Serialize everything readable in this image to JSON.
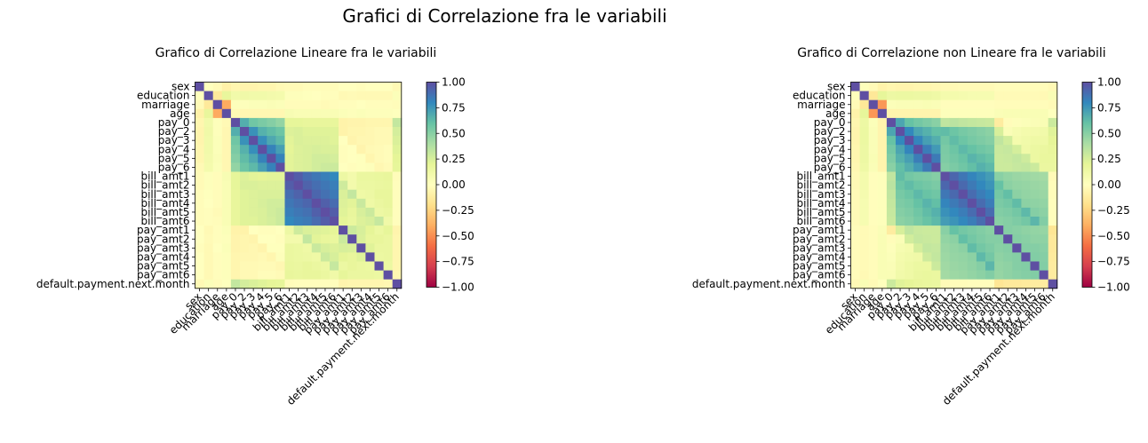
{
  "suptitle": "Grafici di Correlazione fra le variabili",
  "chart_data": [
    {
      "type": "heatmap",
      "title": "Grafico di Correlazione Lineare fra le variabili",
      "colormap": "Spectral",
      "vmin": -1,
      "vmax": 1,
      "labels": [
        "sex",
        "education",
        "marriage",
        "age",
        "pay_0",
        "pay_2",
        "pay_3",
        "pay_4",
        "pay_5",
        "pay_6",
        "bill_amt1",
        "bill_amt2",
        "bill_amt3",
        "bill_amt4",
        "bill_amt5",
        "bill_amt6",
        "pay_amt1",
        "pay_amt2",
        "pay_amt3",
        "pay_amt4",
        "pay_amt5",
        "pay_amt6",
        "default.payment.next.month"
      ],
      "colorbar_ticks": [
        "1.00",
        "0.75",
        "0.50",
        "0.25",
        "0.00",
        "−0.25",
        "−0.50",
        "−0.75",
        "−1.00"
      ],
      "matrix": [
        [
          1.0,
          0.01,
          -0.03,
          -0.09,
          -0.06,
          -0.07,
          -0.07,
          -0.06,
          -0.06,
          -0.04,
          -0.03,
          -0.03,
          -0.02,
          -0.02,
          -0.02,
          -0.02,
          0.0,
          0.0,
          -0.01,
          0.0,
          0.0,
          0.0,
          -0.04
        ],
        [
          0.01,
          1.0,
          -0.14,
          0.18,
          0.11,
          0.12,
          0.11,
          0.11,
          0.1,
          0.09,
          0.02,
          0.02,
          0.01,
          0.0,
          -0.01,
          -0.01,
          -0.04,
          -0.03,
          -0.04,
          -0.04,
          -0.04,
          -0.04,
          0.03
        ],
        [
          -0.03,
          -0.14,
          1.0,
          -0.41,
          0.02,
          0.02,
          0.03,
          0.03,
          0.04,
          0.03,
          -0.02,
          -0.02,
          -0.02,
          -0.02,
          -0.03,
          -0.02,
          -0.01,
          -0.01,
          0.0,
          -0.01,
          -0.01,
          -0.01,
          -0.02
        ],
        [
          -0.09,
          0.18,
          -0.41,
          1.0,
          -0.04,
          -0.05,
          -0.05,
          -0.05,
          -0.05,
          -0.05,
          0.06,
          0.05,
          0.05,
          0.05,
          0.05,
          0.05,
          0.03,
          0.02,
          0.03,
          0.02,
          0.02,
          0.02,
          0.01
        ],
        [
          -0.06,
          0.11,
          0.02,
          -0.04,
          1.0,
          0.67,
          0.57,
          0.54,
          0.51,
          0.47,
          0.19,
          0.19,
          0.18,
          0.18,
          0.18,
          0.18,
          -0.08,
          -0.07,
          -0.07,
          -0.06,
          -0.06,
          -0.06,
          0.32
        ],
        [
          -0.07,
          0.12,
          0.02,
          -0.05,
          0.67,
          1.0,
          0.77,
          0.66,
          0.62,
          0.58,
          0.23,
          0.24,
          0.22,
          0.22,
          0.22,
          0.22,
          -0.08,
          -0.06,
          -0.06,
          -0.05,
          -0.04,
          -0.04,
          0.26
        ],
        [
          -0.07,
          0.11,
          0.03,
          -0.05,
          0.57,
          0.77,
          1.0,
          0.78,
          0.69,
          0.63,
          0.21,
          0.24,
          0.23,
          0.23,
          0.23,
          0.22,
          0.0,
          -0.07,
          -0.05,
          -0.05,
          -0.04,
          -0.04,
          0.24
        ],
        [
          -0.06,
          0.11,
          0.03,
          -0.05,
          0.54,
          0.66,
          0.78,
          1.0,
          0.82,
          0.72,
          0.2,
          0.23,
          0.24,
          0.25,
          0.24,
          0.24,
          -0.01,
          0.0,
          -0.07,
          -0.04,
          -0.03,
          -0.02,
          0.22
        ],
        [
          -0.06,
          0.1,
          0.04,
          -0.05,
          0.51,
          0.62,
          0.69,
          0.82,
          1.0,
          0.82,
          0.21,
          0.23,
          0.24,
          0.27,
          0.27,
          0.26,
          -0.01,
          -0.0,
          0.01,
          -0.06,
          -0.03,
          -0.02,
          0.2
        ],
        [
          -0.04,
          0.09,
          0.03,
          -0.05,
          0.47,
          0.58,
          0.63,
          0.72,
          0.82,
          1.0,
          0.21,
          0.23,
          0.24,
          0.27,
          0.29,
          0.29,
          -0.0,
          -0.01,
          0.01,
          0.02,
          -0.05,
          -0.03,
          0.19
        ],
        [
          -0.03,
          0.02,
          -0.02,
          0.06,
          0.19,
          0.23,
          0.21,
          0.2,
          0.21,
          0.21,
          1.0,
          0.95,
          0.89,
          0.86,
          0.83,
          0.8,
          0.14,
          0.1,
          0.16,
          0.16,
          0.17,
          0.18,
          -0.02
        ],
        [
          -0.03,
          0.02,
          -0.02,
          0.05,
          0.19,
          0.24,
          0.24,
          0.23,
          0.23,
          0.23,
          0.95,
          1.0,
          0.93,
          0.89,
          0.86,
          0.83,
          0.28,
          0.1,
          0.15,
          0.15,
          0.16,
          0.17,
          -0.01
        ],
        [
          -0.02,
          0.01,
          -0.02,
          0.05,
          0.18,
          0.22,
          0.23,
          0.24,
          0.24,
          0.24,
          0.89,
          0.93,
          1.0,
          0.92,
          0.88,
          0.85,
          0.24,
          0.32,
          0.13,
          0.14,
          0.18,
          0.18,
          -0.01
        ],
        [
          -0.02,
          0.0,
          -0.02,
          0.05,
          0.18,
          0.22,
          0.23,
          0.25,
          0.27,
          0.27,
          0.86,
          0.89,
          0.92,
          1.0,
          0.94,
          0.9,
          0.23,
          0.21,
          0.3,
          0.13,
          0.16,
          0.18,
          -0.01
        ],
        [
          -0.02,
          -0.01,
          -0.03,
          0.05,
          0.18,
          0.22,
          0.23,
          0.24,
          0.27,
          0.29,
          0.83,
          0.86,
          0.88,
          0.94,
          1.0,
          0.95,
          0.22,
          0.18,
          0.25,
          0.29,
          0.14,
          0.16,
          -0.01
        ],
        [
          -0.02,
          -0.01,
          -0.02,
          0.05,
          0.18,
          0.22,
          0.22,
          0.24,
          0.26,
          0.29,
          0.8,
          0.83,
          0.85,
          0.9,
          0.95,
          1.0,
          0.2,
          0.17,
          0.23,
          0.25,
          0.31,
          0.12,
          -0.01
        ],
        [
          0.0,
          -0.04,
          -0.01,
          0.03,
          -0.08,
          -0.08,
          0.0,
          -0.01,
          -0.01,
          -0.0,
          0.14,
          0.28,
          0.24,
          0.23,
          0.22,
          0.2,
          1.0,
          0.29,
          0.25,
          0.2,
          0.15,
          0.19,
          -0.07
        ],
        [
          0.0,
          -0.03,
          -0.01,
          0.02,
          -0.07,
          -0.06,
          -0.07,
          0.0,
          -0.0,
          -0.01,
          0.1,
          0.1,
          0.32,
          0.21,
          0.18,
          0.17,
          0.29,
          1.0,
          0.24,
          0.18,
          0.18,
          0.16,
          -0.06
        ],
        [
          -0.01,
          -0.04,
          0.0,
          0.03,
          -0.07,
          -0.06,
          -0.05,
          -0.07,
          0.01,
          0.01,
          0.16,
          0.15,
          0.13,
          0.3,
          0.25,
          0.23,
          0.25,
          0.24,
          1.0,
          0.22,
          0.16,
          0.16,
          -0.06
        ],
        [
          0.0,
          -0.04,
          -0.01,
          0.02,
          -0.06,
          -0.05,
          -0.05,
          -0.04,
          -0.06,
          0.02,
          0.16,
          0.15,
          0.14,
          0.13,
          0.29,
          0.25,
          0.2,
          0.18,
          0.22,
          1.0,
          0.15,
          0.16,
          -0.06
        ],
        [
          0.0,
          -0.04,
          -0.01,
          0.02,
          -0.06,
          -0.04,
          -0.04,
          -0.03,
          -0.03,
          -0.05,
          0.17,
          0.16,
          0.18,
          0.16,
          0.14,
          0.31,
          0.15,
          0.18,
          0.16,
          0.15,
          1.0,
          0.15,
          -0.06
        ],
        [
          0.0,
          -0.04,
          -0.01,
          0.02,
          -0.06,
          -0.04,
          -0.04,
          -0.02,
          -0.02,
          -0.03,
          0.18,
          0.17,
          0.18,
          0.18,
          0.16,
          0.12,
          0.19,
          0.16,
          0.16,
          0.16,
          0.15,
          1.0,
          -0.05
        ],
        [
          -0.04,
          0.03,
          -0.02,
          0.01,
          0.32,
          0.26,
          0.24,
          0.22,
          0.2,
          0.19,
          -0.02,
          -0.01,
          -0.01,
          -0.01,
          -0.01,
          -0.01,
          -0.07,
          -0.06,
          -0.06,
          -0.06,
          -0.06,
          -0.05,
          1.0
        ]
      ]
    },
    {
      "type": "heatmap",
      "title": "Grafico di Correlazione non Lineare fra le variabili",
      "colormap": "Spectral",
      "vmin": -1,
      "vmax": 1,
      "labels": [
        "sex",
        "education",
        "marriage",
        "age",
        "pay_0",
        "pay_2",
        "pay_3",
        "pay_4",
        "pay_5",
        "pay_6",
        "bill_amt1",
        "bill_amt2",
        "bill_amt3",
        "bill_amt4",
        "bill_amt5",
        "bill_amt6",
        "pay_amt1",
        "pay_amt2",
        "pay_amt3",
        "pay_amt4",
        "pay_amt5",
        "pay_amt6",
        "default.payment.next.month"
      ],
      "colorbar_ticks": [
        "1.00",
        "0.75",
        "0.50",
        "0.25",
        "0.00",
        "−0.25",
        "−0.50",
        "−0.75",
        "−1.00"
      ],
      "matrix": [
        [
          1.0,
          0.02,
          -0.03,
          -0.08,
          -0.06,
          -0.07,
          -0.07,
          -0.06,
          -0.06,
          -0.05,
          -0.04,
          -0.04,
          -0.03,
          -0.03,
          -0.03,
          -0.03,
          -0.02,
          -0.02,
          -0.02,
          -0.02,
          -0.02,
          -0.02,
          -0.04
        ],
        [
          0.02,
          1.0,
          -0.15,
          0.19,
          0.14,
          0.15,
          0.15,
          0.14,
          0.14,
          0.13,
          0.09,
          0.09,
          0.08,
          0.07,
          0.07,
          0.07,
          -0.03,
          -0.03,
          -0.03,
          -0.03,
          -0.03,
          -0.04,
          0.05
        ],
        [
          -0.03,
          -0.15,
          1.0,
          -0.47,
          0.03,
          0.04,
          0.04,
          0.04,
          0.05,
          0.04,
          -0.01,
          -0.01,
          -0.01,
          -0.01,
          -0.01,
          -0.01,
          -0.02,
          -0.02,
          -0.02,
          -0.02,
          -0.02,
          -0.02,
          -0.03
        ],
        [
          -0.08,
          0.19,
          -0.47,
          1.0,
          -0.07,
          -0.07,
          -0.07,
          -0.07,
          -0.07,
          -0.07,
          0.02,
          0.02,
          0.02,
          0.02,
          0.02,
          0.02,
          0.04,
          0.05,
          0.05,
          0.05,
          0.05,
          0.05,
          0.01
        ],
        [
          -0.06,
          0.14,
          0.03,
          -0.07,
          1.0,
          0.7,
          0.6,
          0.56,
          0.53,
          0.5,
          0.33,
          0.35,
          0.33,
          0.32,
          0.31,
          0.3,
          -0.12,
          -0.02,
          0.02,
          0.03,
          0.04,
          0.05,
          0.29
        ],
        [
          -0.07,
          0.15,
          0.04,
          -0.07,
          0.7,
          1.0,
          0.8,
          0.7,
          0.66,
          0.61,
          0.62,
          0.58,
          0.55,
          0.53,
          0.51,
          0.49,
          0.25,
          0.04,
          0.07,
          0.09,
          0.1,
          0.11,
          0.22
        ],
        [
          -0.07,
          0.15,
          0.04,
          -0.07,
          0.6,
          0.8,
          1.0,
          0.81,
          0.72,
          0.67,
          0.56,
          0.62,
          0.58,
          0.55,
          0.53,
          0.51,
          0.33,
          0.27,
          0.09,
          0.11,
          0.13,
          0.13,
          0.2
        ],
        [
          -0.06,
          0.14,
          0.04,
          -0.07,
          0.56,
          0.7,
          0.81,
          1.0,
          0.84,
          0.74,
          0.54,
          0.58,
          0.63,
          0.6,
          0.57,
          0.55,
          0.3,
          0.31,
          0.26,
          0.12,
          0.15,
          0.16,
          0.18
        ],
        [
          -0.06,
          0.14,
          0.05,
          -0.07,
          0.53,
          0.66,
          0.72,
          0.84,
          1.0,
          0.85,
          0.53,
          0.56,
          0.59,
          0.65,
          0.62,
          0.59,
          0.29,
          0.3,
          0.32,
          0.28,
          0.15,
          0.17,
          0.17
        ],
        [
          -0.05,
          0.13,
          0.04,
          -0.07,
          0.5,
          0.61,
          0.67,
          0.74,
          0.85,
          1.0,
          0.51,
          0.54,
          0.57,
          0.61,
          0.66,
          0.63,
          0.29,
          0.29,
          0.31,
          0.32,
          0.29,
          0.16,
          0.16
        ],
        [
          -0.04,
          0.09,
          -0.01,
          0.02,
          0.33,
          0.62,
          0.56,
          0.54,
          0.53,
          0.51,
          1.0,
          0.92,
          0.86,
          0.81,
          0.77,
          0.73,
          0.5,
          0.47,
          0.45,
          0.44,
          0.43,
          0.42,
          -0.03
        ],
        [
          -0.04,
          0.09,
          -0.01,
          0.02,
          0.35,
          0.58,
          0.62,
          0.58,
          0.56,
          0.54,
          0.92,
          1.0,
          0.91,
          0.85,
          0.8,
          0.76,
          0.6,
          0.49,
          0.47,
          0.46,
          0.45,
          0.44,
          -0.02
        ],
        [
          -0.03,
          0.08,
          -0.01,
          0.02,
          0.33,
          0.55,
          0.58,
          0.63,
          0.59,
          0.57,
          0.86,
          0.91,
          1.0,
          0.9,
          0.84,
          0.8,
          0.56,
          0.61,
          0.49,
          0.47,
          0.46,
          0.45,
          -0.02
        ],
        [
          -0.03,
          0.07,
          -0.01,
          0.02,
          0.32,
          0.53,
          0.55,
          0.6,
          0.65,
          0.61,
          0.81,
          0.85,
          0.9,
          1.0,
          0.9,
          0.84,
          0.54,
          0.56,
          0.62,
          0.49,
          0.48,
          0.47,
          -0.01
        ],
        [
          -0.03,
          0.07,
          -0.01,
          0.02,
          0.31,
          0.51,
          0.53,
          0.57,
          0.62,
          0.66,
          0.77,
          0.8,
          0.84,
          0.9,
          1.0,
          0.9,
          0.52,
          0.53,
          0.56,
          0.63,
          0.51,
          0.49,
          -0.01
        ],
        [
          -0.03,
          0.07,
          -0.01,
          0.02,
          0.3,
          0.49,
          0.51,
          0.55,
          0.59,
          0.63,
          0.73,
          0.76,
          0.8,
          0.84,
          0.9,
          1.0,
          0.5,
          0.51,
          0.53,
          0.56,
          0.64,
          0.52,
          -0.01
        ],
        [
          -0.02,
          -0.03,
          -0.02,
          0.04,
          -0.12,
          0.25,
          0.33,
          0.3,
          0.29,
          0.29,
          0.5,
          0.6,
          0.56,
          0.54,
          0.52,
          0.5,
          1.0,
          0.51,
          0.5,
          0.48,
          0.47,
          0.46,
          -0.16
        ],
        [
          -0.02,
          -0.03,
          -0.02,
          0.05,
          -0.02,
          0.04,
          0.27,
          0.31,
          0.3,
          0.29,
          0.47,
          0.49,
          0.61,
          0.56,
          0.53,
          0.51,
          0.51,
          1.0,
          0.51,
          0.5,
          0.48,
          0.48,
          -0.14
        ],
        [
          -0.02,
          -0.03,
          -0.02,
          0.05,
          0.02,
          0.07,
          0.09,
          0.26,
          0.32,
          0.31,
          0.45,
          0.47,
          0.49,
          0.62,
          0.56,
          0.53,
          0.5,
          0.51,
          1.0,
          0.51,
          0.51,
          0.5,
          -0.14
        ],
        [
          -0.02,
          -0.03,
          -0.02,
          0.05,
          0.03,
          0.09,
          0.11,
          0.12,
          0.28,
          0.32,
          0.44,
          0.46,
          0.47,
          0.49,
          0.63,
          0.56,
          0.48,
          0.5,
          0.51,
          1.0,
          0.52,
          0.51,
          -0.13
        ],
        [
          -0.02,
          -0.03,
          -0.02,
          0.05,
          0.04,
          0.1,
          0.13,
          0.15,
          0.15,
          0.29,
          0.43,
          0.45,
          0.46,
          0.48,
          0.51,
          0.64,
          0.47,
          0.48,
          0.51,
          0.52,
          1.0,
          0.52,
          -0.12
        ],
        [
          -0.02,
          -0.04,
          -0.02,
          0.05,
          0.05,
          0.11,
          0.13,
          0.16,
          0.17,
          0.16,
          0.42,
          0.44,
          0.45,
          0.47,
          0.49,
          0.52,
          0.46,
          0.48,
          0.5,
          0.51,
          0.52,
          1.0,
          -0.12
        ],
        [
          -0.04,
          0.05,
          -0.03,
          0.01,
          0.29,
          0.22,
          0.2,
          0.18,
          0.17,
          0.16,
          -0.03,
          -0.02,
          -0.02,
          -0.01,
          -0.01,
          -0.01,
          -0.16,
          -0.14,
          -0.14,
          -0.13,
          -0.12,
          -0.12,
          1.0
        ]
      ]
    }
  ]
}
